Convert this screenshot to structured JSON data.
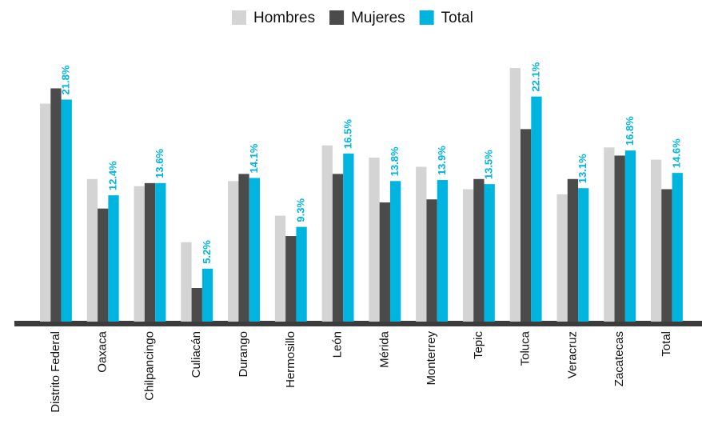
{
  "chart_data": {
    "type": "bar",
    "categories": [
      "Distrito Federal",
      "Oaxaca",
      "Chilpancingo",
      "Culiacán",
      "Durango",
      "Hermosillo",
      "León",
      "Mérida",
      "Monterrey",
      "Tepic",
      "Toluca",
      "Veracruz",
      "Zacatecas",
      "Total"
    ],
    "series": [
      {
        "name": "Hombres",
        "color": "#d4d4d4",
        "values": [
          21.4,
          14.0,
          13.3,
          7.8,
          13.8,
          10.4,
          17.3,
          16.1,
          15.2,
          13.0,
          24.9,
          12.5,
          17.1,
          15.9
        ]
      },
      {
        "name": "Mujeres",
        "color": "#4b4b4b",
        "values": [
          22.9,
          11.1,
          13.6,
          3.3,
          14.5,
          8.4,
          14.5,
          11.7,
          12.0,
          14.0,
          18.9,
          14.0,
          16.3,
          13.0
        ]
      },
      {
        "name": "Total",
        "color": "#00b4e0",
        "values": [
          21.8,
          12.4,
          13.6,
          5.2,
          14.1,
          9.3,
          16.5,
          13.8,
          13.9,
          13.5,
          22.1,
          13.1,
          16.8,
          14.6
        ],
        "value_labels": [
          "21.8%",
          "12.4%",
          "13.6%",
          "5.2%",
          "14.1%",
          "9.3%",
          "16.5%",
          "13.8%",
          "13.9%",
          "13.5%",
          "22.1%",
          "13.1%",
          "16.8%",
          "14.6%"
        ]
      }
    ],
    "legend": "top"
  }
}
